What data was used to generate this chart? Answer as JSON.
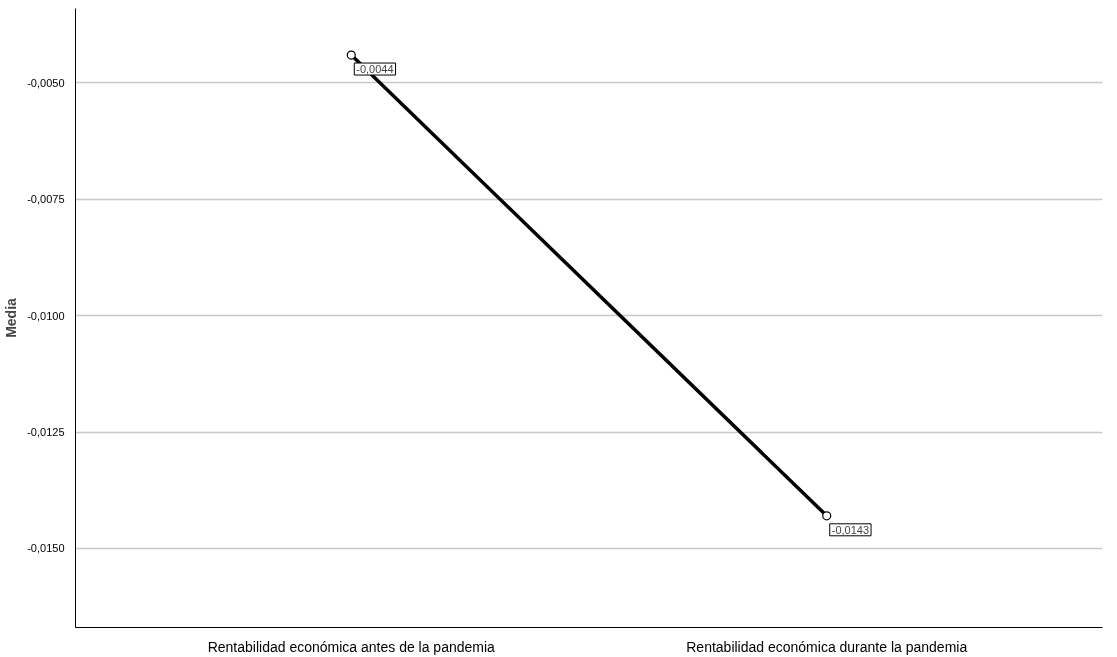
{
  "chart_data": {
    "type": "line",
    "ylabel": "Media",
    "categories": [
      "Rentabilidad económica antes de la pandemia",
      "Rentabilidad económica durante la pandemia"
    ],
    "series": [
      {
        "color": "#000000",
        "values": [
          -0.0044,
          -0.0143
        ],
        "value_labels": [
          "-0,0044",
          "-0,0143"
        ]
      }
    ],
    "ylim": [
      -0.0167,
      -0.0034
    ],
    "yticks": [
      {
        "value": -0.015,
        "label": "-0,0150"
      },
      {
        "value": -0.0125,
        "label": "-0,0125"
      },
      {
        "value": -0.01,
        "label": "-0,0100"
      },
      {
        "value": -0.0075,
        "label": "-0,0075"
      },
      {
        "value": -0.005,
        "label": "-0,0050"
      }
    ],
    "grid": "y",
    "marker": "circle",
    "line_style": "solid"
  }
}
